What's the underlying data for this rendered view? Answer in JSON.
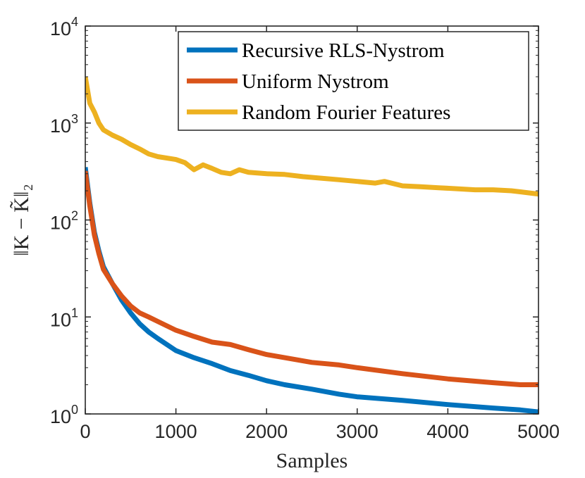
{
  "chart_data": {
    "type": "line",
    "title": "",
    "xlabel": "Samples",
    "ylabel": "‖K − K̃‖₂",
    "xlim": [
      0,
      5000
    ],
    "ylim": [
      1,
      10000
    ],
    "yscale": "log",
    "grid": false,
    "legend_position": "top-right",
    "x_ticks": [
      "0",
      "1000",
      "2000",
      "3000",
      "4000",
      "5000"
    ],
    "y_ticks": [
      {
        "base": "10",
        "exp": "0",
        "value": 1
      },
      {
        "base": "10",
        "exp": "1",
        "value": 10
      },
      {
        "base": "10",
        "exp": "2",
        "value": 100
      },
      {
        "base": "10",
        "exp": "3",
        "value": 1000
      },
      {
        "base": "10",
        "exp": "4",
        "value": 10000
      }
    ],
    "series": [
      {
        "name": "Recursive RLS-Nystrom",
        "color": "#0072BD",
        "points": [
          [
            0,
            350
          ],
          [
            50,
            150
          ],
          [
            100,
            75
          ],
          [
            150,
            48
          ],
          [
            200,
            33
          ],
          [
            300,
            22
          ],
          [
            400,
            15
          ],
          [
            500,
            11
          ],
          [
            600,
            8.5
          ],
          [
            700,
            7
          ],
          [
            800,
            6
          ],
          [
            1000,
            4.5
          ],
          [
            1200,
            3.8
          ],
          [
            1400,
            3.3
          ],
          [
            1600,
            2.8
          ],
          [
            1800,
            2.5
          ],
          [
            2000,
            2.2
          ],
          [
            2200,
            2.0
          ],
          [
            2500,
            1.8
          ],
          [
            2800,
            1.6
          ],
          [
            3000,
            1.5
          ],
          [
            3500,
            1.38
          ],
          [
            4000,
            1.25
          ],
          [
            4500,
            1.15
          ],
          [
            4800,
            1.1
          ],
          [
            5000,
            1.05
          ]
        ]
      },
      {
        "name": "Uniform Nystrom",
        "color": "#D95319",
        "points": [
          [
            0,
            320
          ],
          [
            50,
            140
          ],
          [
            100,
            70
          ],
          [
            150,
            45
          ],
          [
            200,
            31
          ],
          [
            300,
            22
          ],
          [
            400,
            16.5
          ],
          [
            500,
            13
          ],
          [
            600,
            11
          ],
          [
            700,
            10
          ],
          [
            800,
            9
          ],
          [
            1000,
            7.3
          ],
          [
            1200,
            6.3
          ],
          [
            1400,
            5.5
          ],
          [
            1600,
            5.2
          ],
          [
            1800,
            4.6
          ],
          [
            2000,
            4.1
          ],
          [
            2200,
            3.8
          ],
          [
            2500,
            3.4
          ],
          [
            2800,
            3.2
          ],
          [
            3000,
            3.0
          ],
          [
            3500,
            2.6
          ],
          [
            4000,
            2.3
          ],
          [
            4500,
            2.1
          ],
          [
            4800,
            2.0
          ],
          [
            5000,
            2.0
          ]
        ]
      },
      {
        "name": "Random Fourier Features",
        "color": "#EDB120",
        "points": [
          [
            0,
            3000
          ],
          [
            50,
            1600
          ],
          [
            100,
            1300
          ],
          [
            150,
            1000
          ],
          [
            200,
            850
          ],
          [
            300,
            750
          ],
          [
            400,
            680
          ],
          [
            500,
            600
          ],
          [
            600,
            540
          ],
          [
            700,
            480
          ],
          [
            800,
            450
          ],
          [
            1000,
            420
          ],
          [
            1100,
            390
          ],
          [
            1200,
            330
          ],
          [
            1300,
            370
          ],
          [
            1400,
            340
          ],
          [
            1500,
            310
          ],
          [
            1600,
            300
          ],
          [
            1700,
            330
          ],
          [
            1800,
            310
          ],
          [
            1900,
            305
          ],
          [
            2000,
            300
          ],
          [
            2200,
            295
          ],
          [
            2400,
            280
          ],
          [
            2600,
            270
          ],
          [
            2800,
            260
          ],
          [
            3000,
            250
          ],
          [
            3200,
            240
          ],
          [
            3300,
            250
          ],
          [
            3500,
            225
          ],
          [
            3700,
            220
          ],
          [
            3900,
            215
          ],
          [
            4100,
            210
          ],
          [
            4300,
            205
          ],
          [
            4500,
            205
          ],
          [
            4700,
            200
          ],
          [
            4800,
            195
          ],
          [
            5000,
            185
          ]
        ]
      }
    ]
  }
}
